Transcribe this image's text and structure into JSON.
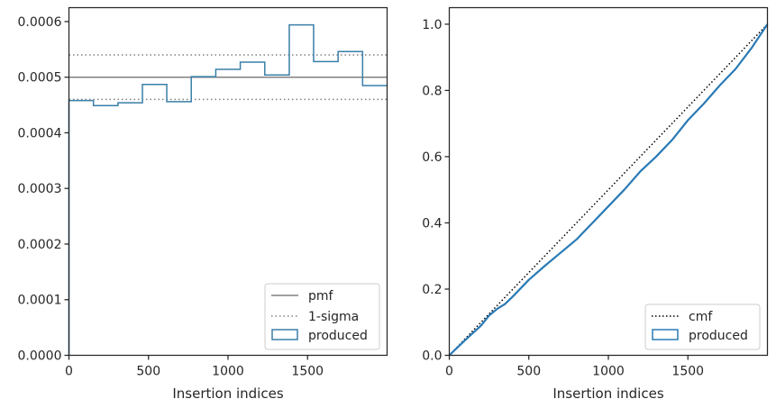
{
  "chart_data": [
    {
      "type": "histogram",
      "xlabel": "Insertion indices",
      "ylabel": "",
      "xlim": [
        0,
        2000
      ],
      "ylim": [
        0,
        0.000625
      ],
      "xticks": [
        {
          "value": 0,
          "label": "0"
        },
        {
          "value": 500,
          "label": "500"
        },
        {
          "value": 1000,
          "label": "1000"
        },
        {
          "value": 1500,
          "label": "1500"
        }
      ],
      "yticks": [
        {
          "value": 0,
          "label": "0.0000"
        },
        {
          "value": 0.0001,
          "label": "0.0001"
        },
        {
          "value": 0.0002,
          "label": "0.0002"
        },
        {
          "value": 0.0003,
          "label": "0.0003"
        },
        {
          "value": 0.0004,
          "label": "0.0004"
        },
        {
          "value": 0.0005,
          "label": "0.0005"
        },
        {
          "value": 0.0006,
          "label": "0.0006"
        }
      ],
      "bin_edges": [
        0,
        154,
        308,
        462,
        615,
        769,
        923,
        1077,
        1231,
        1385,
        1538,
        1692,
        1846,
        2000
      ],
      "values": [
        0.000458,
        0.000449,
        0.000454,
        0.000487,
        0.000456,
        0.000501,
        0.000514,
        0.000527,
        0.000504,
        0.000594,
        0.000528,
        0.000546,
        0.000485
      ],
      "pmf": 0.0005,
      "sigma_band": [
        0.00046,
        0.00054
      ],
      "legend": {
        "position": "lower right",
        "entries": [
          "pmf",
          "1-sigma",
          "produced"
        ]
      },
      "colors": {
        "pmf": "#808080",
        "sigma": "#808080",
        "produced": "#3a7fa8"
      }
    },
    {
      "type": "line",
      "xlabel": "Insertion indices",
      "ylabel": "",
      "xlim": [
        0,
        2000
      ],
      "ylim": [
        0,
        1.05
      ],
      "xticks": [
        {
          "value": 0,
          "label": "0"
        },
        {
          "value": 500,
          "label": "500"
        },
        {
          "value": 1000,
          "label": "1000"
        },
        {
          "value": 1500,
          "label": "1500"
        }
      ],
      "yticks": [
        {
          "value": 0,
          "label": "0.0"
        },
        {
          "value": 0.2,
          "label": "0.2"
        },
        {
          "value": 0.4,
          "label": "0.4"
        },
        {
          "value": 0.6,
          "label": "0.6"
        },
        {
          "value": 0.8,
          "label": "0.8"
        },
        {
          "value": 1.0,
          "label": "1.0"
        }
      ],
      "cmf": {
        "x": [
          0,
          2000
        ],
        "y": [
          0,
          1.0
        ]
      },
      "produced": {
        "x": [
          0,
          100,
          200,
          250,
          300,
          350,
          400,
          500,
          600,
          700,
          800,
          900,
          1000,
          1100,
          1200,
          1300,
          1400,
          1500,
          1600,
          1700,
          1800,
          1900,
          2000
        ],
        "y": [
          0,
          0.046,
          0.09,
          0.12,
          0.14,
          0.155,
          0.178,
          0.228,
          0.27,
          0.31,
          0.35,
          0.4,
          0.45,
          0.5,
          0.555,
          0.6,
          0.65,
          0.71,
          0.76,
          0.815,
          0.865,
          0.928,
          1.0
        ]
      },
      "legend": {
        "position": "lower right",
        "entries": [
          "cmf",
          "produced"
        ]
      },
      "colors": {
        "cmf": "#000000",
        "produced": "#2a7ab5"
      }
    }
  ]
}
